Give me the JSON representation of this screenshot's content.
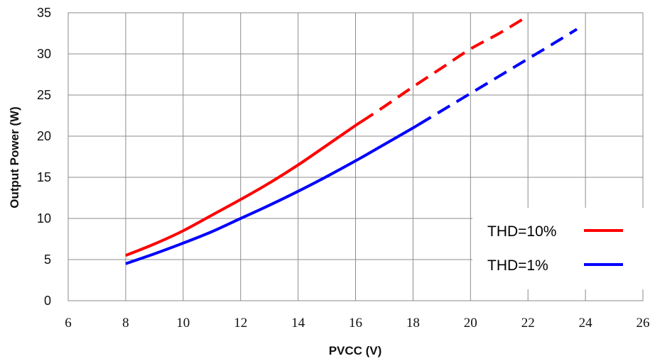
{
  "chart_data": {
    "type": "line",
    "title": "",
    "xlabel": "PVCC (V)",
    "ylabel": "Output Power (W)",
    "xlim": [
      6,
      26
    ],
    "ylim": [
      0,
      35
    ],
    "xticks": [
      6,
      8,
      10,
      12,
      14,
      16,
      18,
      20,
      22,
      24,
      26
    ],
    "yticks": [
      0,
      5,
      10,
      15,
      20,
      25,
      30,
      35
    ],
    "grid": true,
    "legend_position": "bottom-right",
    "series": [
      {
        "name": "THD=10%",
        "color": "#ff0000",
        "x": [
          8,
          9,
          10,
          11,
          12,
          13,
          14,
          15,
          16,
          17,
          18,
          19,
          20,
          21,
          22
        ],
        "y": [
          5.5,
          6.9,
          8.5,
          10.4,
          12.3,
          14.3,
          16.5,
          18.9,
          21.3,
          23.6,
          26.0,
          28.3,
          30.6,
          32.5,
          34.6
        ],
        "solid_until_x": 16.2
      },
      {
        "name": "THD=1%",
        "color": "#0000ff",
        "x": [
          8,
          9,
          10,
          11,
          12,
          13,
          14,
          15,
          16,
          17,
          18,
          19,
          20,
          21,
          22,
          23,
          23.7
        ],
        "y": [
          4.5,
          5.7,
          7.0,
          8.4,
          10.0,
          11.6,
          13.3,
          15.1,
          17.0,
          19.0,
          21.0,
          23.1,
          25.2,
          27.3,
          29.4,
          31.5,
          33.0
        ],
        "solid_until_x": 18.2
      }
    ]
  }
}
